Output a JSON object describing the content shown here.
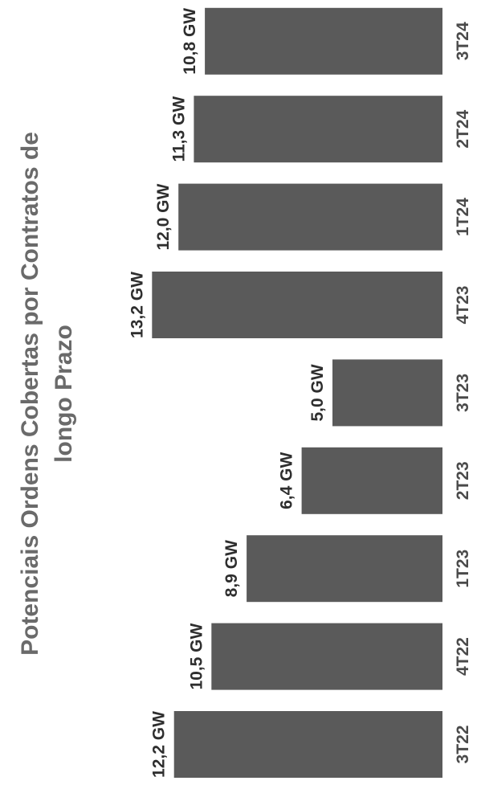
{
  "chart_data": {
    "type": "bar",
    "orientation": "horizontal",
    "title_lines": [
      "Potenciais Ordens Cobertas por Contratos de",
      "longo Prazo"
    ],
    "categories": [
      "3T22",
      "4T22",
      "1T23",
      "2T23",
      "3T23",
      "4T23",
      "1T24",
      "2T24",
      "3T24"
    ],
    "values": [
      12.2,
      10.5,
      8.9,
      6.4,
      5.0,
      13.2,
      12.0,
      11.3,
      10.8
    ],
    "value_labels": [
      "12,2 GW",
      "10,5 GW",
      "8,9 GW",
      "6,4 GW",
      "5,0 GW",
      "13,2 GW",
      "12,0 GW",
      "11,3 GW",
      "10,8 GW"
    ],
    "unit": "GW",
    "xlim": [
      0,
      13.2
    ],
    "grid": false,
    "legend": "none",
    "colors": {
      "bar": "#5a5a5a",
      "title": "#6a6a6a",
      "value_label": "#2e2e2e",
      "category_label": "#4a4a4a"
    }
  }
}
